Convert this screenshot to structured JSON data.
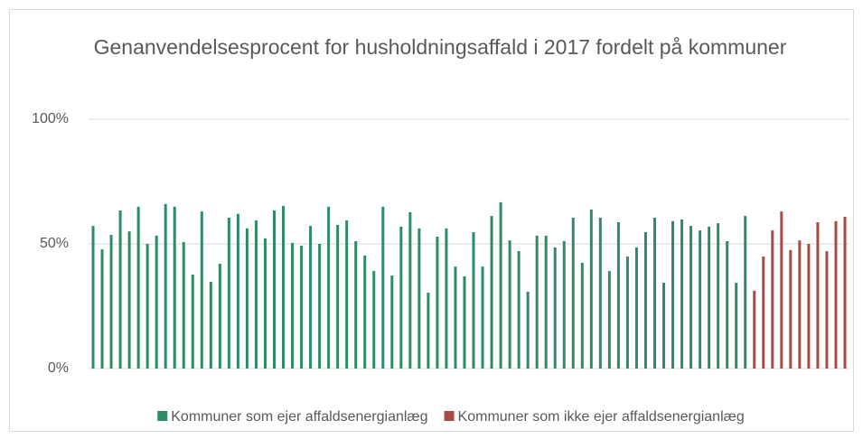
{
  "chart_data": {
    "type": "bar",
    "title": "Genanvendelsesprocent for husholdningsaffald i 2017 fordelt på kommuner",
    "categories": [
      null,
      null,
      null,
      null,
      null,
      null,
      null,
      null,
      null,
      null,
      null,
      null,
      null,
      null,
      null,
      null,
      null,
      null,
      null,
      null,
      null,
      null,
      null,
      null,
      null,
      null,
      null,
      null,
      null,
      null,
      null,
      null,
      null,
      null,
      null,
      null,
      null,
      null,
      null,
      null,
      null,
      null,
      null,
      null,
      null,
      null,
      null,
      null,
      null,
      null,
      null,
      null,
      null,
      null,
      null,
      null,
      null,
      null,
      null,
      null,
      null,
      null,
      null,
      null,
      null,
      null,
      null,
      null,
      null,
      null,
      null,
      null,
      null,
      null,
      null,
      null,
      null,
      null,
      null,
      null,
      null,
      null,
      null,
      null
    ],
    "series": [
      {
        "name": "Kommuner som ejer affaldsenergianlæg",
        "color": "#2e8b63",
        "values": [
          57.2,
          47.8,
          53.6,
          63.4,
          55,
          64.9,
          50,
          53.3,
          66,
          64.9,
          50.7,
          37.7,
          63,
          34.8,
          42,
          60.5,
          62,
          56.2,
          59.4,
          52.2,
          63.4,
          65.2,
          50.4,
          49.3,
          57.2,
          50,
          64.9,
          57.6,
          59.4,
          51.1,
          45.3,
          39.1,
          64.9,
          37.3,
          56.9,
          62.7,
          56.2,
          30.4,
          52.9,
          56.2,
          40.9,
          37,
          54.7,
          40.9,
          61.2,
          66.7,
          51.4,
          47.1,
          30.8,
          53.3,
          53.3,
          48.6,
          51.1,
          60.5,
          42.4,
          63.8,
          60.5,
          39.1,
          58.7,
          44.9,
          48.6,
          54.7,
          60.5,
          34.4,
          59.1,
          59.8,
          57.2,
          55.4,
          56.9,
          58.3,
          51.1,
          34.4,
          61.2,
          null,
          null,
          null,
          null,
          null,
          null,
          null,
          null,
          null,
          null,
          null
        ]
      },
      {
        "name": "Kommuner som ikke ejer affaldsenergianlæg",
        "color": "#a94a45",
        "values": [
          null,
          null,
          null,
          null,
          null,
          null,
          null,
          null,
          null,
          null,
          null,
          null,
          null,
          null,
          null,
          null,
          null,
          null,
          null,
          null,
          null,
          null,
          null,
          null,
          null,
          null,
          null,
          null,
          null,
          null,
          null,
          null,
          null,
          null,
          null,
          null,
          null,
          null,
          null,
          null,
          null,
          null,
          null,
          null,
          null,
          null,
          null,
          null,
          null,
          null,
          null,
          null,
          null,
          null,
          null,
          null,
          null,
          null,
          null,
          null,
          null,
          null,
          null,
          null,
          null,
          null,
          null,
          null,
          null,
          null,
          null,
          null,
          null,
          31.2,
          44.9,
          55.4,
          63,
          47.5,
          51.4,
          50,
          58.7,
          47.1,
          59.1,
          60.9
        ]
      }
    ],
    "ylim": [
      0,
      100
    ],
    "yticks": [
      {
        "value": 0,
        "label": "0%"
      },
      {
        "value": 50,
        "label": "50%"
      },
      {
        "value": 100,
        "label": "100%"
      }
    ],
    "grid": true,
    "legend": "bottom"
  }
}
